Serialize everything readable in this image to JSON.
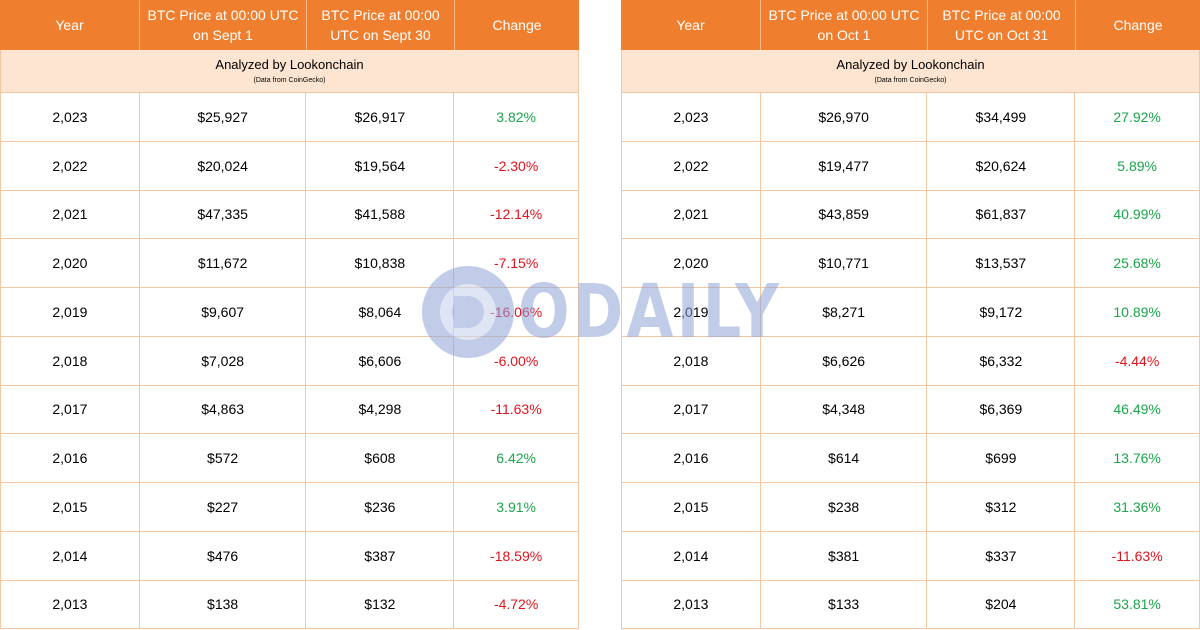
{
  "headers": {
    "year": "Year",
    "change": "Change"
  },
  "left": {
    "col_open": "BTC Price at 00:00 UTC on Sept 1",
    "col_close": "BTC Price at 00:00 UTC on Sept 30",
    "banner_title": "Analyzed by Lookonchain",
    "banner_sub": "(Data from CoinGecko)",
    "rows": [
      {
        "year": "2,023",
        "open": "$25,927",
        "close": "$26,917",
        "change": "3.82%"
      },
      {
        "year": "2,022",
        "open": "$20,024",
        "close": "$19,564",
        "change": "-2.30%"
      },
      {
        "year": "2,021",
        "open": "$47,335",
        "close": "$41,588",
        "change": "-12.14%"
      },
      {
        "year": "2,020",
        "open": "$11,672",
        "close": "$10,838",
        "change": "-7.15%"
      },
      {
        "year": "2,019",
        "open": "$9,607",
        "close": "$8,064",
        "change": "-16.06%"
      },
      {
        "year": "2,018",
        "open": "$7,028",
        "close": "$6,606",
        "change": "-6.00%"
      },
      {
        "year": "2,017",
        "open": "$4,863",
        "close": "$4,298",
        "change": "-11.63%"
      },
      {
        "year": "2,016",
        "open": "$572",
        "close": "$608",
        "change": "6.42%"
      },
      {
        "year": "2,015",
        "open": "$227",
        "close": "$236",
        "change": "3.91%"
      },
      {
        "year": "2,014",
        "open": "$476",
        "close": "$387",
        "change": "-18.59%"
      },
      {
        "year": "2,013",
        "open": "$138",
        "close": "$132",
        "change": "-4.72%"
      }
    ]
  },
  "right": {
    "col_open": "BTC Price at 00:00 UTC on Oct 1",
    "col_close": "BTC Price at 00:00 UTC on Oct 31",
    "banner_title": "Analyzed by Lookonchain",
    "banner_sub": "(Data from CoinGecko)",
    "rows": [
      {
        "year": "2,023",
        "open": "$26,970",
        "close": "$34,499",
        "change": "27.92%"
      },
      {
        "year": "2,022",
        "open": "$19,477",
        "close": "$20,624",
        "change": "5.89%"
      },
      {
        "year": "2,021",
        "open": "$43,859",
        "close": "$61,837",
        "change": "40.99%"
      },
      {
        "year": "2,020",
        "open": "$10,771",
        "close": "$13,537",
        "change": "25.68%"
      },
      {
        "year": "2,019",
        "open": "$8,271",
        "close": "$9,172",
        "change": "10.89%"
      },
      {
        "year": "2,018",
        "open": "$6,626",
        "close": "$6,332",
        "change": "-4.44%"
      },
      {
        "year": "2,017",
        "open": "$4,348",
        "close": "$6,369",
        "change": "46.49%"
      },
      {
        "year": "2,016",
        "open": "$614",
        "close": "$699",
        "change": "13.76%"
      },
      {
        "year": "2,015",
        "open": "$238",
        "close": "$312",
        "change": "31.36%"
      },
      {
        "year": "2,014",
        "open": "$381",
        "close": "$337",
        "change": "-11.63%"
      },
      {
        "year": "2,013",
        "open": "$133",
        "close": "$204",
        "change": "53.81%"
      }
    ]
  },
  "watermark": {
    "text": "ODAILY"
  },
  "colors": {
    "header_bg": "#ef7f2f",
    "banner_bg": "#fde5d2",
    "positive": "#1aa64a",
    "negative": "#e0141e",
    "watermark": "#8ea3d6"
  }
}
